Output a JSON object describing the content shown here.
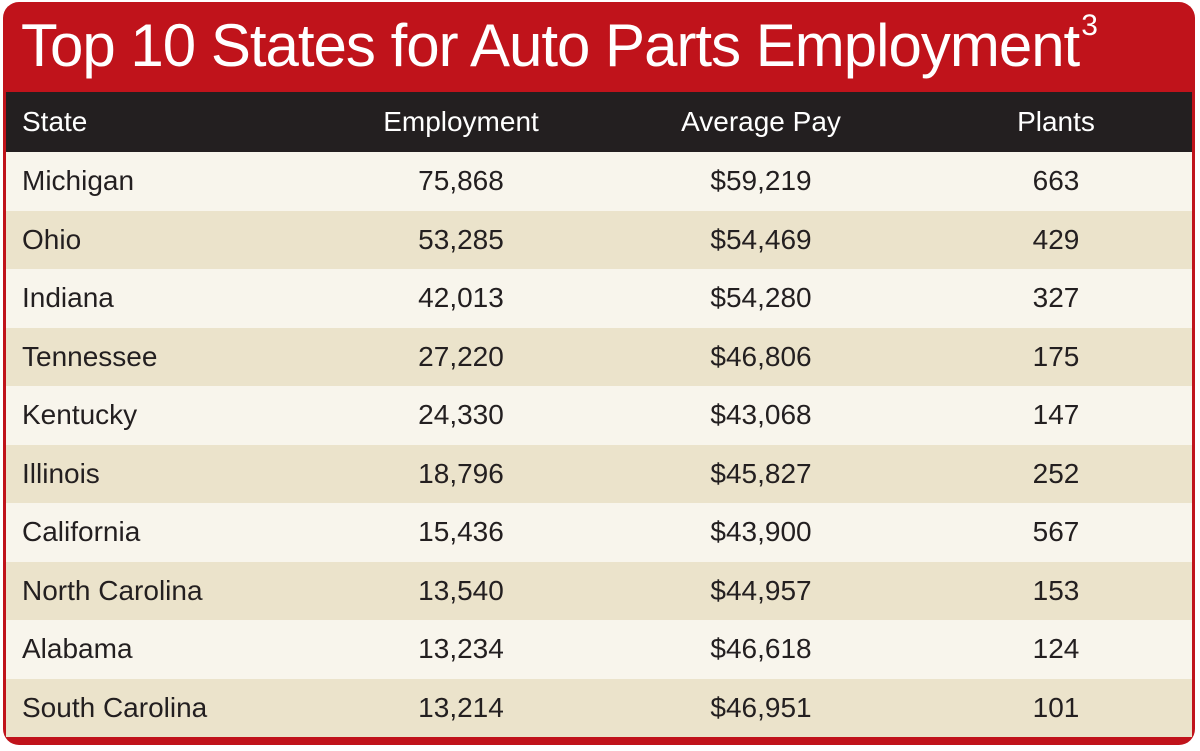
{
  "chart_data": {
    "type": "table",
    "title": "Top 10 States for Auto Parts Employment",
    "title_superscript": "3",
    "columns": [
      "State",
      "Employment",
      "Average Pay",
      "Plants"
    ],
    "rows": [
      [
        "Michigan",
        "75,868",
        "$59,219",
        "663"
      ],
      [
        "Ohio",
        "53,285",
        "$54,469",
        "429"
      ],
      [
        "Indiana",
        "42,013",
        "$54,280",
        "327"
      ],
      [
        "Tennessee",
        "27,220",
        "$46,806",
        "175"
      ],
      [
        "Kentucky",
        "24,330",
        "$43,068",
        "147"
      ],
      [
        "Illinois",
        "18,796",
        "$45,827",
        "252"
      ],
      [
        "California",
        "15,436",
        "$43,900",
        "567"
      ],
      [
        "North Carolina",
        "13,540",
        "$44,957",
        "153"
      ],
      [
        "Alabama",
        "13,234",
        "$46,618",
        "124"
      ],
      [
        "South Carolina",
        "13,214",
        "$46,951",
        "101"
      ]
    ]
  },
  "colors": {
    "frame": "#c0131b",
    "header_bg": "#231f20",
    "row_alt": "#ebe3cb",
    "row_base": "#f8f5ec"
  }
}
